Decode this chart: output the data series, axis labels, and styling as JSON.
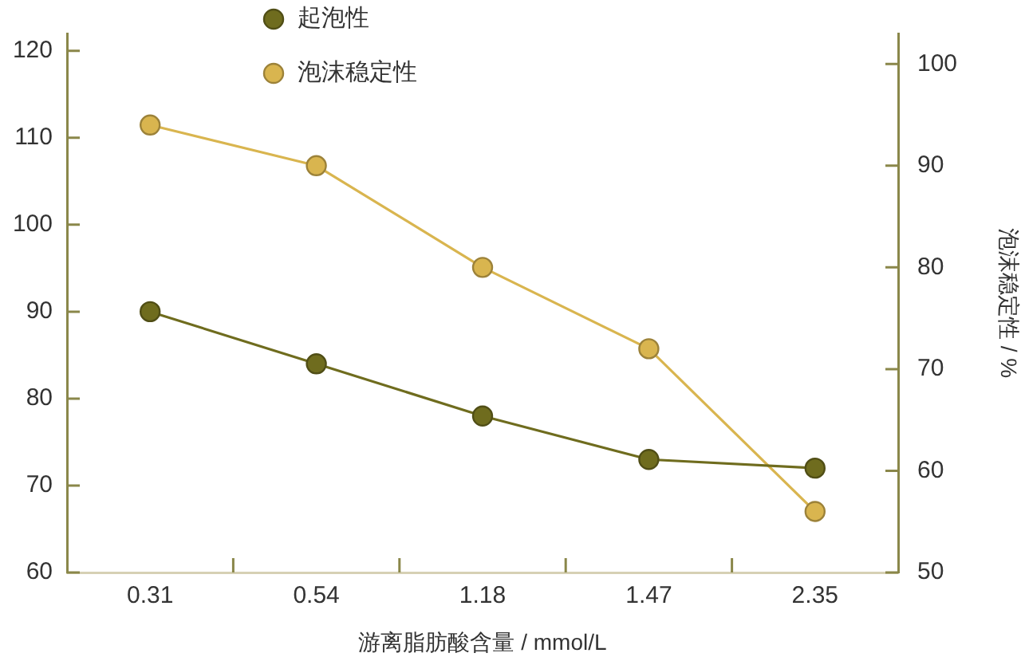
{
  "chart_data": {
    "type": "line",
    "categories": [
      "0.31",
      "0.54",
      "1.18",
      "1.47",
      "2.35"
    ],
    "series": [
      {
        "name": "起泡性",
        "color": "#6f6c1e",
        "values": [
          90,
          84,
          78,
          73,
          72
        ]
      },
      {
        "name": "泡沫稳定性",
        "color": "#d9b54f",
        "axis": "y2",
        "values": [
          94,
          90,
          80,
          72,
          56
        ]
      }
    ],
    "xlabel": "游离脂肪酸含量 / mmol/L",
    "y2label": "泡沫稳定性 / %",
    "ylim": [
      60,
      122
    ],
    "yticks": [
      60,
      70,
      80,
      90,
      100,
      110,
      120
    ],
    "y2lim": [
      50,
      103
    ],
    "y2ticks": [
      50,
      60,
      70,
      80,
      90,
      100
    ],
    "legend": "top left",
    "marker": "circle"
  }
}
